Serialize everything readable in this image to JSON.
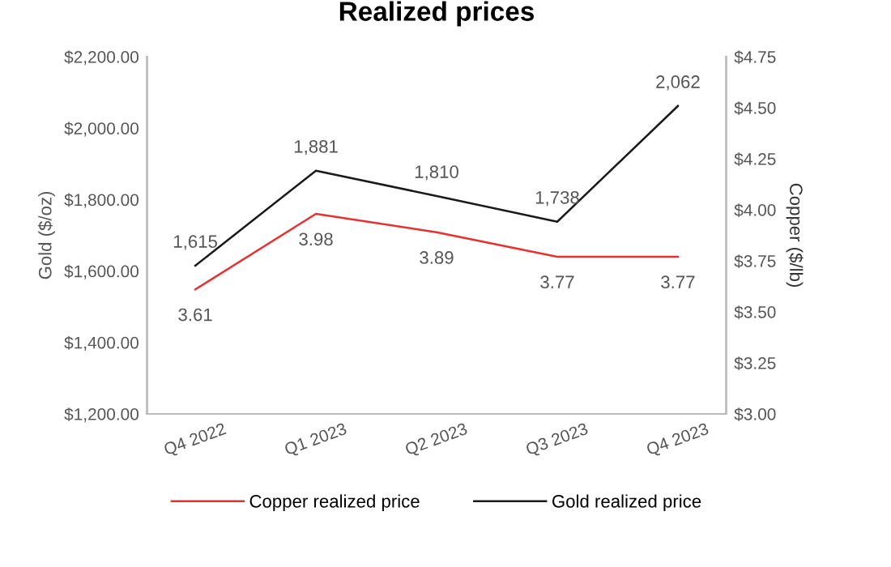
{
  "chart_data": {
    "type": "line",
    "title": "Realized prices",
    "ylabel": "Gold ($/oz)",
    "y2label": "Copper ($/lb)",
    "categories": [
      "Q4 2022",
      "Q1 2023",
      "Q2 2023",
      "Q3 2023",
      "Q4 2023"
    ],
    "series": [
      {
        "name": "Copper realized price",
        "color": "#e8312f",
        "axis": "y2",
        "values": [
          3.61,
          3.98,
          3.89,
          3.77,
          3.77
        ],
        "value_labels": [
          "3.61",
          "3.98",
          "3.89",
          "3.77",
          "3.77"
        ]
      },
      {
        "name": "Gold realized price",
        "color": "#1a1a1a",
        "values": [
          1615,
          1881,
          1810,
          1738,
          2062
        ],
        "value_labels": [
          "1,615",
          "1,881",
          "1,810",
          "1,738",
          "2,062"
        ]
      }
    ],
    "ylim": [
      1200,
      2200
    ],
    "yticks": [
      {
        "value": 1200,
        "label": "$1,200.00"
      },
      {
        "value": 1400,
        "label": "$1,400.00"
      },
      {
        "value": 1600,
        "label": "$1,600.00"
      },
      {
        "value": 1800,
        "label": "$1,800.00"
      },
      {
        "value": 2000,
        "label": "$2,000.00"
      },
      {
        "value": 2200,
        "label": "$2,200.00"
      }
    ],
    "y2lim": [
      3.0,
      4.75
    ],
    "y2ticks": [
      {
        "value": 3.0,
        "label": "$3.00"
      },
      {
        "value": 3.25,
        "label": "$3.25"
      },
      {
        "value": 3.5,
        "label": "$3.50"
      },
      {
        "value": 3.75,
        "label": "$3.75"
      },
      {
        "value": 4.0,
        "label": "$4.00"
      },
      {
        "value": 4.25,
        "label": "$4.25"
      },
      {
        "value": 4.5,
        "label": "$4.50"
      },
      {
        "value": 4.75,
        "label": "$4.75"
      }
    ],
    "legend": "bottom",
    "grid": false,
    "marker": "none",
    "line_style": "solid"
  }
}
